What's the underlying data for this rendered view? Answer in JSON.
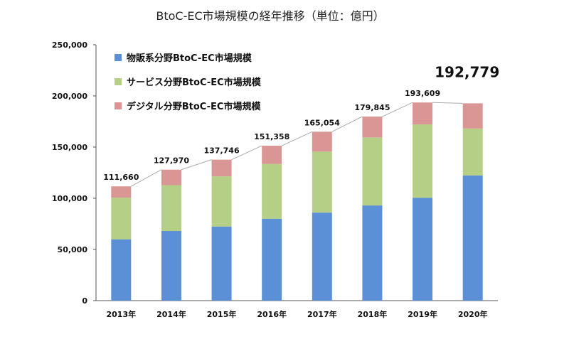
{
  "chart_data": {
    "type": "bar",
    "stacked": true,
    "title": "BtoC-EC市場規模の経年推移（単位：億円）",
    "categories": [
      "2013年",
      "2014年",
      "2015年",
      "2016年",
      "2017年",
      "2018年",
      "2019年",
      "2020年"
    ],
    "series": [
      {
        "name": "物販系分野BtoC-EC市場規模",
        "color": "#5b8fd6",
        "values": [
          59931,
          68043,
          72398,
          80043,
          86008,
          92992,
          100515,
          122333
        ]
      },
      {
        "name": "サービス分野BtoC-EC市場規模",
        "color": "#b5cf86",
        "values": [
          40745,
          44816,
          49014,
          53532,
          59568,
          66471,
          71672,
          45832
        ]
      },
      {
        "name": "デジタル分野BtoC-EC市場規模",
        "color": "#d99694",
        "values": [
          10984,
          15111,
          16334,
          17783,
          19478,
          20382,
          21422,
          24614
        ]
      }
    ],
    "totals": [
      "111,660",
      "127,970",
      "137,746",
      "151,358",
      "165,054",
      "179,845",
      "193,609",
      "192,779"
    ],
    "ylim": [
      0,
      250000
    ],
    "yticks": [
      "0",
      "50,000",
      "100,000",
      "150,000",
      "200,000",
      "250,000"
    ],
    "ytick_values": [
      0,
      50000,
      100000,
      150000,
      200000,
      250000
    ],
    "grid": false,
    "legend_position": "top-left",
    "connector_lines": true
  }
}
